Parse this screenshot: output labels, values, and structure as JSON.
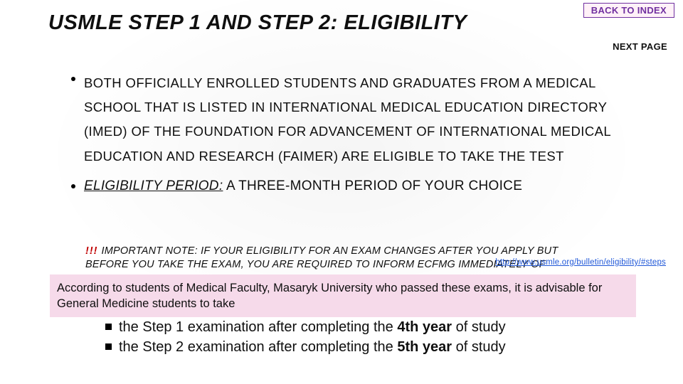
{
  "nav": {
    "back_to_index": "BACK TO INDEX",
    "next_page": "NEXT PAGE"
  },
  "title": "USMLE STEP 1 AND STEP 2: ELIGIBILITY",
  "bullet1": "BOTH OFFICIALLY ENROLLED STUDENTS AND GRADUATES FROM A MEDICAL SCHOOL THAT IS LISTED IN INTERNATIONAL MEDICAL EDUCATION DIRECTORY (IMED) OF THE FOUNDATION FOR ADVANCEMENT OF INTERNATIONAL MEDICAL EDUCATION AND RESEARCH (FAIMER) ARE ELIGIBLE TO TAKE THE TEST",
  "bullet2_label": "ELIGIBILITY PERIOD:",
  "bullet2_rest": " A THREE-MONTH PERIOD OF YOUR CHOICE",
  "note": {
    "bang": "!!! ",
    "line1": "IMPORTANT NOTE: IF YOUR ELIGIBILITY FOR AN EXAM CHANGES AFTER YOU APPLY BUT",
    "line2": "BEFORE YOU TAKE THE EXAM, YOU ARE REQUIRED TO INFORM ECFMG IMMEDIATELY OF"
  },
  "link": "http://www.usmle.org/bulletin/eligibility/#steps",
  "advice": "According to students of Medical Faculty, Masaryk University who passed these exams, it is advisable for General Medicine students to take",
  "steps": {
    "s1_a": "the Step 1 examination after completing the ",
    "s1_b": "4th year",
    "s1_c": " of study",
    "s2_a": "the Step 2 examination after completing the ",
    "s2_b": "5th year",
    "s2_c": " of study"
  },
  "colors": {
    "purple": "#7030a0",
    "pink_bg": "#f6daea",
    "nav_bg": "#fff1f8",
    "red": "#c00000",
    "link_blue": "#1f57d8"
  }
}
